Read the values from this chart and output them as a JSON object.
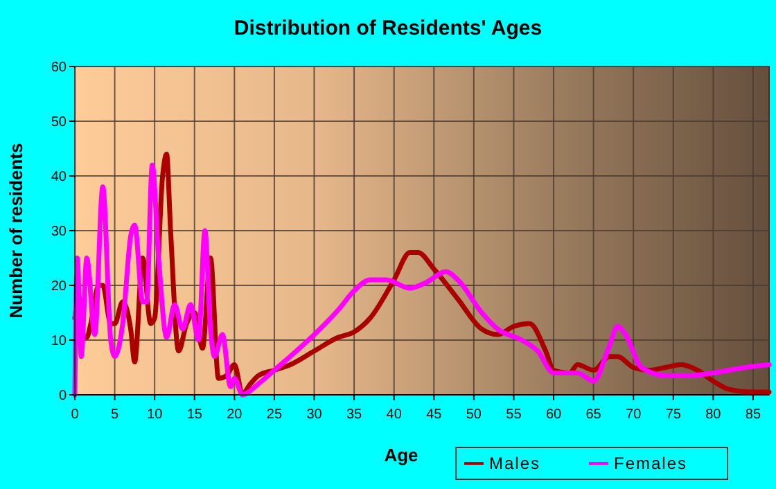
{
  "chart_data": {
    "type": "line",
    "title": "Distribution of Residents' Ages",
    "xlabel": "Age",
    "ylabel": "Number of residents",
    "xlim": [
      0,
      87
    ],
    "xticks": [
      0,
      5,
      10,
      15,
      20,
      25,
      30,
      35,
      40,
      45,
      50,
      55,
      60,
      65,
      70,
      75,
      80,
      85
    ],
    "ylim": [
      0,
      60
    ],
    "yticks": [
      0,
      10,
      20,
      30,
      40,
      50,
      60
    ],
    "grid": true,
    "legend": "bottom right",
    "series": [
      {
        "name": "Males",
        "color": "#aa0000",
        "x": [
          0,
          0.5,
          1,
          1.5,
          2,
          3,
          3.5,
          4.5,
          5,
          6,
          7,
          7.5,
          8.5,
          9.5,
          10,
          11,
          11.5,
          12,
          13,
          14,
          15,
          16,
          17,
          18,
          19,
          20,
          21,
          22,
          23,
          25,
          27,
          30,
          33,
          35,
          37,
          40,
          42,
          43,
          45,
          48,
          51,
          53,
          55,
          57,
          59,
          60,
          62,
          63,
          65,
          67,
          68,
          70,
          72,
          74,
          76,
          78,
          80,
          82,
          85,
          87
        ],
        "values": [
          14,
          18,
          11,
          10.5,
          13,
          20,
          20,
          13,
          13,
          17,
          12,
          6,
          25,
          13,
          14,
          40,
          44,
          30,
          8,
          13,
          15,
          8.5,
          25,
          3,
          3.5,
          5.5,
          0.2,
          2,
          3.5,
          4.5,
          5.5,
          8,
          10.5,
          11.5,
          14,
          21,
          26,
          26,
          23,
          17.5,
          12,
          11,
          12.5,
          13,
          8,
          4.5,
          4,
          5.5,
          4.5,
          7,
          7,
          5,
          4.5,
          5,
          5.5,
          4.5,
          2.5,
          1,
          0.5,
          0.5
        ]
      },
      {
        "name": "Females",
        "color": "#ff00ff",
        "x": [
          0,
          0.3,
          0.8,
          1.5,
          2.5,
          3.5,
          4.5,
          5,
          6,
          7,
          7.5,
          8.5,
          9,
          9.7,
          10.5,
          11.5,
          12.5,
          13.5,
          14.5,
          15.5,
          16.3,
          17,
          17.5,
          18.5,
          19.5,
          20,
          21,
          23,
          25,
          30,
          33,
          35,
          37,
          39,
          42,
          44,
          46.5,
          48,
          51,
          53,
          56,
          58,
          60,
          63,
          65,
          67,
          68,
          69,
          71,
          74,
          77,
          80,
          84,
          87
        ],
        "values": [
          0,
          25,
          7,
          25,
          11,
          38,
          10,
          7,
          13,
          29,
          31,
          17,
          17,
          42,
          25,
          10.5,
          16.5,
          12,
          16.5,
          10,
          30,
          12,
          7,
          11,
          1.5,
          3,
          0,
          2,
          4.5,
          11,
          15.5,
          19,
          21,
          21,
          19.5,
          20.5,
          22.5,
          21,
          15,
          12,
          10,
          8,
          4,
          4,
          2.5,
          9,
          12.5,
          11,
          5,
          3.5,
          3.5,
          4,
          5,
          5.5
        ]
      }
    ]
  }
}
